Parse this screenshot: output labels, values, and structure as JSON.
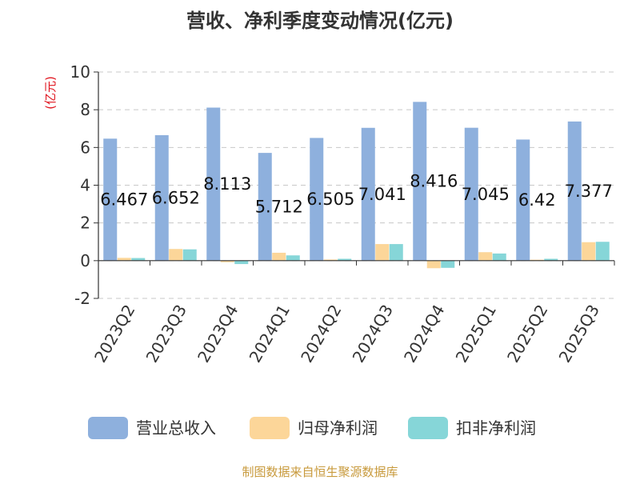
{
  "chart_data": {
    "type": "bar",
    "title": "营收、净利季度变动情况(亿元)",
    "unit_label": "(亿元)",
    "categories": [
      "2023Q2",
      "2023Q3",
      "2023Q4",
      "2024Q1",
      "2024Q2",
      "2024Q3",
      "2024Q4",
      "2025Q1",
      "2025Q2",
      "2025Q3"
    ],
    "series": [
      {
        "name": "营业总收入",
        "color": "#8eb0dd",
        "values": [
          6.467,
          6.652,
          8.113,
          5.712,
          6.505,
          7.041,
          8.416,
          7.045,
          6.42,
          7.377
        ],
        "labels": [
          "6.467",
          "6.652",
          "8.113",
          "5.712",
          "6.505",
          "7.041",
          "8.416",
          "7.045",
          "6.42",
          "7.377"
        ]
      },
      {
        "name": "归母净利润",
        "color": "#fcd699",
        "values": [
          0.15,
          0.62,
          -0.08,
          0.42,
          0.06,
          0.88,
          -0.4,
          0.45,
          0.05,
          0.98
        ]
      },
      {
        "name": "扣非净利润",
        "color": "#86d6d8",
        "values": [
          0.14,
          0.6,
          -0.18,
          0.28,
          0.1,
          0.88,
          -0.38,
          0.38,
          0.1,
          1.0
        ]
      }
    ],
    "ylim": [
      -2,
      10
    ],
    "yticks": [
      -2,
      0,
      2,
      4,
      6,
      8,
      10
    ],
    "grid": true,
    "legend": "bottom",
    "source_note": "制图数据来自恒生聚源数据库"
  }
}
